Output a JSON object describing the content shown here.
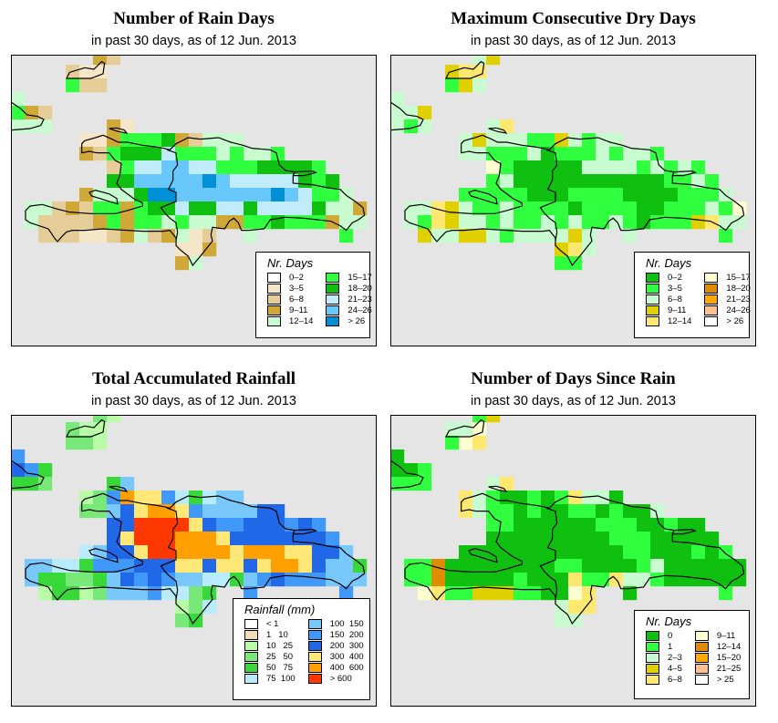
{
  "panels": [
    {
      "title": "Number of Rain Days",
      "subtitle": "in past 30 days, as of  12 Jun. 2013",
      "legend_title": "Nr. Days",
      "legend": [
        {
          "label": "0–2",
          "color": "#ffffff"
        },
        {
          "label": "3–5",
          "color": "#f5e6c8"
        },
        {
          "label": "6–8",
          "color": "#e6cc96"
        },
        {
          "label": "9–11",
          "color": "#d0a838"
        },
        {
          "label": "12–14",
          "color": "#c8fcd0"
        },
        {
          "label": "15–17",
          "color": "#30ff40"
        },
        {
          "label": "18–20",
          "color": "#10c010"
        },
        {
          "label": "21–23",
          "color": "#c0ecfc"
        },
        {
          "label": "24–26",
          "color": "#68c8fc"
        },
        {
          "label": "> 26",
          "color": "#0090d8"
        }
      ],
      "grid": [
        "......32..................",
        "....211...................",
        "....522...................",
        "4.........................",
        "532.......................",
        "444....31.................",
        ".....113555632444.........",
        ".....325666755545445......",
        ".......2577887755566665...",
        ".......66888889877777656..",
        ".....34446998888888987554.",
        ".4423255356676677677776443",
        ".4222235355454433556555344",
        "..2221123423412..4......5.",
        "............113...........",
        "............34............"
      ]
    },
    {
      "title": "Maximum Consecutive Dry Days",
      "subtitle": "in past 30 days, as of  12 Jun. 2013",
      "legend_title": "Nr. Days",
      "legend": [
        {
          "label": "0–2",
          "color": "#10c010"
        },
        {
          "label": "3–5",
          "color": "#30ff40"
        },
        {
          "label": "6–8",
          "color": "#c8fcd0"
        },
        {
          "label": "9–11",
          "color": "#e0d000"
        },
        {
          "label": "12–14",
          "color": "#ffe870"
        },
        {
          "label": "15–17",
          "color": "#ffffd0"
        },
        {
          "label": "18–20",
          "color": "#e08c00"
        },
        {
          "label": "21–23",
          "color": "#ffa800"
        },
        {
          "label": "24–26",
          "color": "#ffc090"
        },
        {
          "label": "> 26",
          "color": "#ffffff"
        }
      ],
      "grid": [
        "......23..................",
        "....344...................",
        "....132...................",
        "2.........................",
        "223.......................",
        "212....24.................",
        ".....232221132122.........",
        ".....221112011121221......",
        ".......5100000222212121...",
        ".......12000000000001121..",
        ".....11111000111100001112.",
        ".2243211211110111100111215",
        ".2143221211212112101113422",
        "..3223321222232..2......1.",
        "............342...........",
        "............11............"
      ]
    },
    {
      "title": "Total Accumulated Rainfall",
      "subtitle": "in past 30 days, as of  12 Jun. 2013",
      "legend_title": "Rainfall (mm)",
      "legend": [
        {
          "label": "< 1",
          "color": "#ffffff"
        },
        {
          "label": "1   10",
          "color": "#f0dcb8"
        },
        {
          "label": "10   25",
          "color": "#b8fca8"
        },
        {
          "label": "25   50",
          "color": "#78e878"
        },
        {
          "label": "50   75",
          "color": "#38d838"
        },
        {
          "label": "75  100",
          "color": "#b8ecfc"
        },
        {
          "label": "100  150",
          "color": "#78c8fc"
        },
        {
          "label": "150  200",
          "color": "#4098f8"
        },
        {
          "label": "200  300",
          "color": "#2068e8"
        },
        {
          "label": "300  400",
          "color": "#ffe878"
        },
        {
          "label": "400  600",
          "color": "#ffa000"
        },
        {
          "label": "> 600",
          "color": "#ff3800"
        }
      ],
      "grid": [
        "......32..................",
        "....322...................",
        "....332...................",
        "7.........................",
        "874.......................",
        "443....46.................",
        ".....237a99754566.........",
        ".....33689aa97666688......",
        ".......88bbbb9877888787...",
        ".......89bbbaaa988888887..",
        ".....56889bbaaaa9aaa99886.",
        ".665547778889989989aa98664",
        ".6443346878766554678777666",
        "..2442366675534..7......7.",
        "............235...........",
        "............34............"
      ]
    },
    {
      "title": "Number of Days Since Rain",
      "subtitle": "in past 30 days, as of  12 Jun. 2013",
      "legend_title": "Nr. Days",
      "legend": [
        {
          "label": "0",
          "color": "#10c010"
        },
        {
          "label": "1",
          "color": "#30ff40"
        },
        {
          "label": "2–3",
          "color": "#c8fcd0"
        },
        {
          "label": "4–5",
          "color": "#e0d000"
        },
        {
          "label": "6–8",
          "color": "#ffe870"
        },
        {
          "label": "9–11",
          "color": "#ffffd0"
        },
        {
          "label": "12–14",
          "color": "#e08c00"
        },
        {
          "label": "15–20",
          "color": "#ffa800"
        },
        {
          "label": "21–25",
          "color": "#ffc090"
        },
        {
          "label": "> 25",
          "color": "#ffffff"
        }
      ],
      "grid": [
        "......13..................",
        "....225...................",
        "....154...................",
        "0.........................",
        "001.......................",
        "111....24.................",
        ".....421001014220.........",
        ".....421101001101002......",
        ".......1100000011100100...",
        ".......00000000011100000..",
        ".....00000000000011000101.",
        ".1160000000011000012000000",
        ".1160000010004114221000000",
        "..5411333110054..0......1.",
        "............244...........",
        "............22............"
      ]
    }
  ]
}
